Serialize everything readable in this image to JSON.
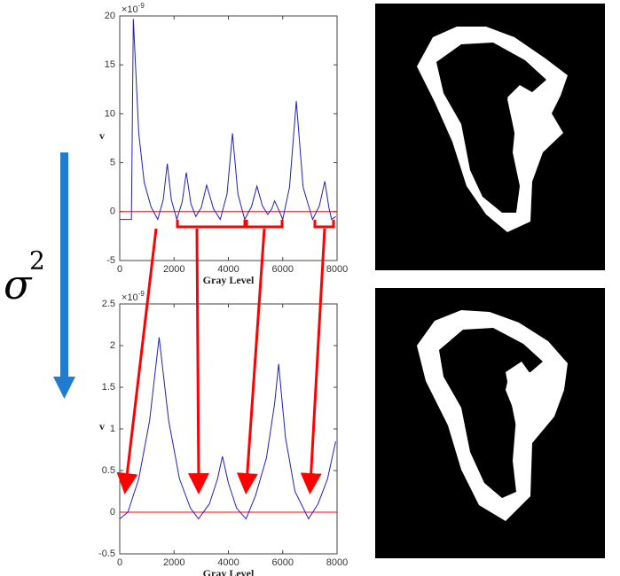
{
  "chart_data": [
    {
      "type": "line",
      "xlabel": "Gray Level",
      "ylabel": "v",
      "y_multiplier": "×10",
      "y_multiplier_exponent": "-9",
      "xlim": [
        0,
        8000
      ],
      "xticks": [
        0,
        2000,
        4000,
        6000,
        8000
      ],
      "ylim": [
        -5,
        20
      ],
      "yticks": [
        -5,
        0,
        5,
        10,
        15,
        20
      ],
      "reference_line": 0,
      "reference_color": "#ff0000",
      "series": [
        {
          "color": "#1f1fbf",
          "x": [
            0,
            430,
            500,
            700,
            900,
            1150,
            1400,
            1600,
            1750,
            1900,
            2100,
            2300,
            2450,
            2620,
            2800,
            3000,
            3200,
            3450,
            3700,
            3950,
            4150,
            4350,
            4600,
            4850,
            5050,
            5250,
            5450,
            5600,
            5700,
            5850,
            6000,
            6250,
            6500,
            6750,
            7100,
            7350,
            7550,
            7700,
            7800,
            7950
          ],
          "values": [
            -0.8,
            -0.8,
            19.7,
            8,
            3,
            0.5,
            -0.8,
            1.2,
            4.9,
            1.2,
            -0.8,
            1.0,
            4.0,
            0.8,
            -0.5,
            0.4,
            2.7,
            0.3,
            -0.8,
            1.8,
            8.0,
            1.8,
            -0.8,
            0.5,
            2.6,
            0.6,
            -0.3,
            0.3,
            1.1,
            0.2,
            -0.8,
            2.5,
            11.3,
            2.5,
            -0.8,
            0.6,
            3.1,
            0.4,
            -0.8,
            -0.5
          ]
        }
      ]
    },
    {
      "type": "line",
      "xlabel": "Gray Level",
      "ylabel": "v",
      "y_multiplier": "×10",
      "y_multiplier_exponent": "-9",
      "xlim": [
        0,
        8000
      ],
      "xticks": [
        0,
        2000,
        4000,
        6000,
        8000
      ],
      "ylim": [
        -0.5,
        2.5
      ],
      "yticks": [
        -0.5,
        0,
        0.5,
        1,
        1.5,
        2,
        2.5
      ],
      "reference_line": 0,
      "reference_color": "#ff0000",
      "series": [
        {
          "color": "#1f1fbf",
          "x": [
            0,
            300,
            700,
            1100,
            1450,
            1800,
            2200,
            2600,
            2900,
            3300,
            3600,
            3780,
            4000,
            4300,
            4650,
            5000,
            5400,
            5700,
            5850,
            6100,
            6450,
            6950,
            7300,
            7650,
            7950
          ],
          "values": [
            -0.08,
            0.0,
            0.4,
            1.1,
            2.1,
            1.1,
            0.4,
            0.05,
            -0.08,
            0.1,
            0.4,
            0.67,
            0.35,
            0.05,
            -0.08,
            0.2,
            0.65,
            1.3,
            1.78,
            0.9,
            0.25,
            -0.08,
            0.1,
            0.4,
            0.85
          ]
        }
      ]
    }
  ],
  "annotation": {
    "symbol": "σ",
    "exponent": "2"
  }
}
